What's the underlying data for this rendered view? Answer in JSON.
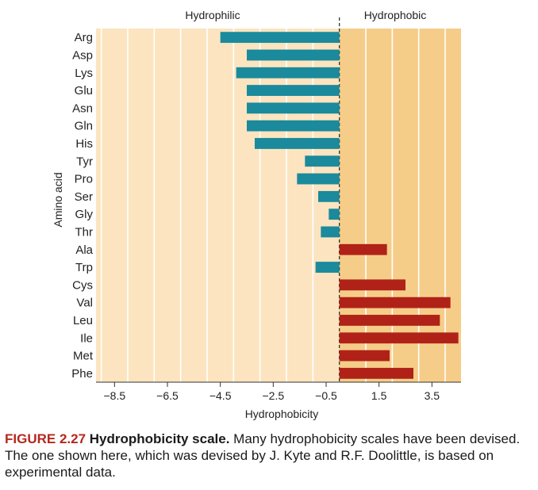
{
  "chart_data": {
    "type": "bar",
    "orientation": "horizontal",
    "categories": [
      "Arg",
      "Asp",
      "Lys",
      "Glu",
      "Asn",
      "Gln",
      "His",
      "Tyr",
      "Pro",
      "Ser",
      "Gly",
      "Thr",
      "Ala",
      "Trp",
      "Cys",
      "Val",
      "Leu",
      "Ile",
      "Met",
      "Phe"
    ],
    "values": [
      -4.5,
      -3.5,
      -3.9,
      -3.5,
      -3.5,
      -3.5,
      -3.2,
      -1.3,
      -1.6,
      -0.8,
      -0.4,
      -0.7,
      1.8,
      -0.9,
      2.5,
      4.2,
      3.8,
      4.5,
      1.9,
      2.8
    ],
    "xlabel": "Hydrophobicity",
    "ylabel": "Amino acid",
    "xlim": [
      -9.2,
      4.6
    ],
    "xticks": [
      -8.5,
      -6.5,
      -4.5,
      -2.5,
      -0.5,
      1.5,
      3.5
    ],
    "xtick_labels": [
      "−8.5",
      "−6.5",
      "−4.5",
      "−2.5",
      "−0.5",
      "1.5",
      "3.5"
    ],
    "divider_at": 0,
    "region_labels": {
      "left": "Hydrophilic",
      "right": "Hydrophobic"
    },
    "colors": {
      "negative_bar": "#1a8a9c",
      "positive_bar": "#b02218",
      "hydrophilic_bg": "#fbe4bf",
      "hydrophobic_bg": "#f5cd89",
      "grid": "#ffffff"
    }
  },
  "caption": {
    "label": "FIGURE 2.27",
    "title": "Hydrophobicity scale.",
    "text": " Many hydrophobicity scales have been devised. The one shown here, which was devised by J. Kyte and R.F. Doolittle, is based on experimental data."
  }
}
